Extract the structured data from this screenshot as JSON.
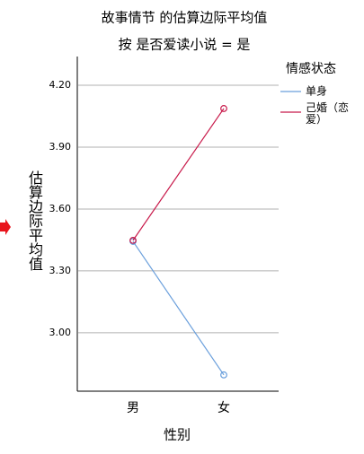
{
  "chart_data": {
    "type": "line",
    "title": "故事情节 的估算边际平均值",
    "subtitle": "按 是否爱读小说 = 是",
    "x_label": "性别",
    "y_label": "估算边际平均值",
    "legend_title": "情感状态",
    "categories": [
      "男",
      "女"
    ],
    "series": [
      {
        "name": "单身",
        "color": "#6a9fdc",
        "values": [
          3.443,
          2.796
        ]
      },
      {
        "name": "己婚（恋爱）",
        "color": "#c8194a",
        "values": [
          3.448,
          4.087
        ]
      }
    ],
    "ylim": [
      2.717,
      4.339
    ],
    "yticks": [
      {
        "value": 3.0,
        "label": "3.00"
      },
      {
        "value": 3.3,
        "label": "3.30"
      },
      {
        "value": 3.6,
        "label": "3.60"
      },
      {
        "value": 3.9,
        "label": "3.90"
      },
      {
        "value": 4.2,
        "label": "4.20"
      }
    ],
    "grid": true
  }
}
